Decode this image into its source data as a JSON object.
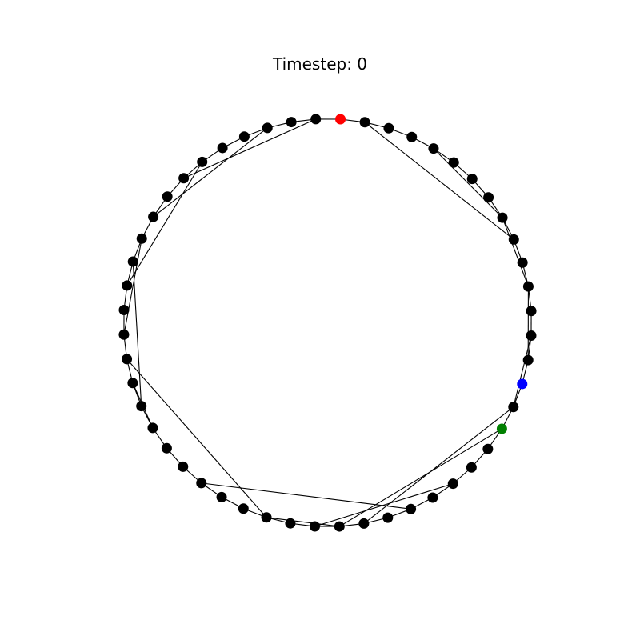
{
  "title": "Timestep: 0",
  "graph": {
    "layout": "circular",
    "node_count": 52,
    "edge_color": "#000000",
    "node_colors": {
      "default": "#000000",
      "highlighted_red": "#ff0000",
      "highlighted_blue": "#0000ff",
      "highlighted_green": "#008000"
    },
    "special_nodes": [
      {
        "index": 0,
        "color": "#ff0000"
      },
      {
        "index": 15,
        "color": "#0000ff"
      },
      {
        "index": 17,
        "color": "#008000"
      }
    ],
    "ring_edges": true,
    "chords": [
      [
        1,
        9
      ],
      [
        4,
        8
      ],
      [
        8,
        11
      ],
      [
        13,
        16
      ],
      [
        11,
        14
      ],
      [
        17,
        25
      ],
      [
        16,
        24
      ],
      [
        20,
        26
      ],
      [
        22,
        31
      ],
      [
        25,
        28
      ],
      [
        28,
        37
      ],
      [
        34,
        36
      ],
      [
        35,
        41
      ],
      [
        38,
        42
      ],
      [
        40,
        46
      ],
      [
        43,
        49
      ],
      [
        45,
        51
      ]
    ]
  }
}
